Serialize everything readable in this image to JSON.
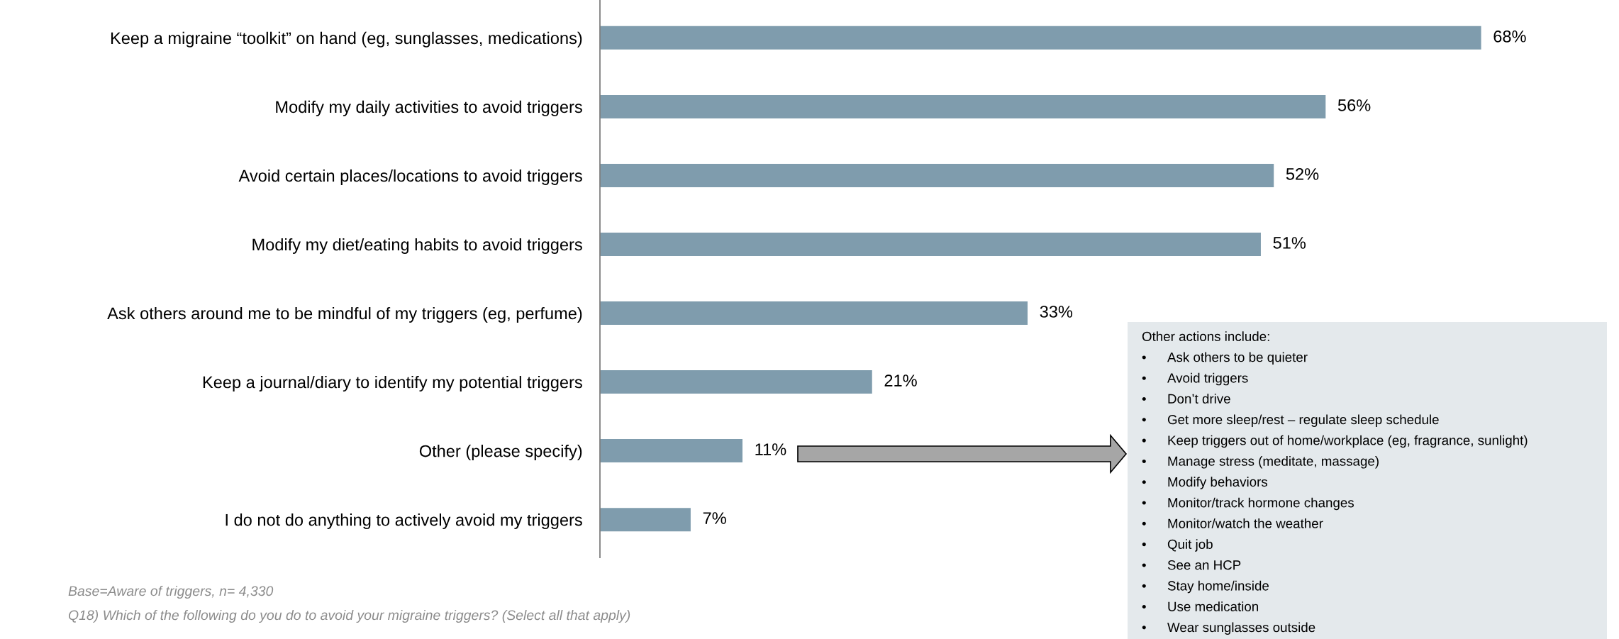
{
  "chart_data": {
    "type": "bar",
    "orientation": "horizontal",
    "categories": [
      "Keep a migraine “toolkit” on hand (eg, sunglasses, medications)",
      "Modify my daily activities to avoid triggers",
      "Avoid certain places/locations to avoid triggers",
      "Modify my diet/eating habits to avoid triggers",
      "Ask others around me to be mindful of my triggers (eg, perfume)",
      "Keep a journal/diary to identify my potential triggers",
      "Other (please specify)",
      "I do not do anything to actively avoid my triggers"
    ],
    "values": [
      68,
      56,
      52,
      51,
      33,
      21,
      11,
      7
    ],
    "color": "#7f9cad",
    "value_labels": [
      "68%",
      "56%",
      "52%",
      "51%",
      "33%",
      "21%",
      "11%",
      "7%"
    ],
    "tick_labels": "y",
    "grid": false,
    "legend": false,
    "annotations": [
      "Base=Aware of triggers, n= 4,330",
      "Q18) Which of the following do you do to avoid your migraine triggers? (Select all that apply)",
      "Other actions include:",
      "•\tAsk others to be quieter",
      "•\tAvoid triggers",
      "•\tDon’t drive",
      "•\tGet more sleep/rest – regulate sleep schedule",
      "•\tKeep triggers out of home/workplace (eg, fragrance, sunlight)",
      "•\tManage stress (meditate, massage)",
      "•\tModify behaviors",
      "•\tMonitor/track hormone changes",
      "•\tMonitor/watch the weather",
      "•\tQuit job",
      "•\tSee an HCP",
      "•\tStay home/inside",
      "•\tUse medication",
      "•\tWear sunglasses outside"
    ]
  }
}
